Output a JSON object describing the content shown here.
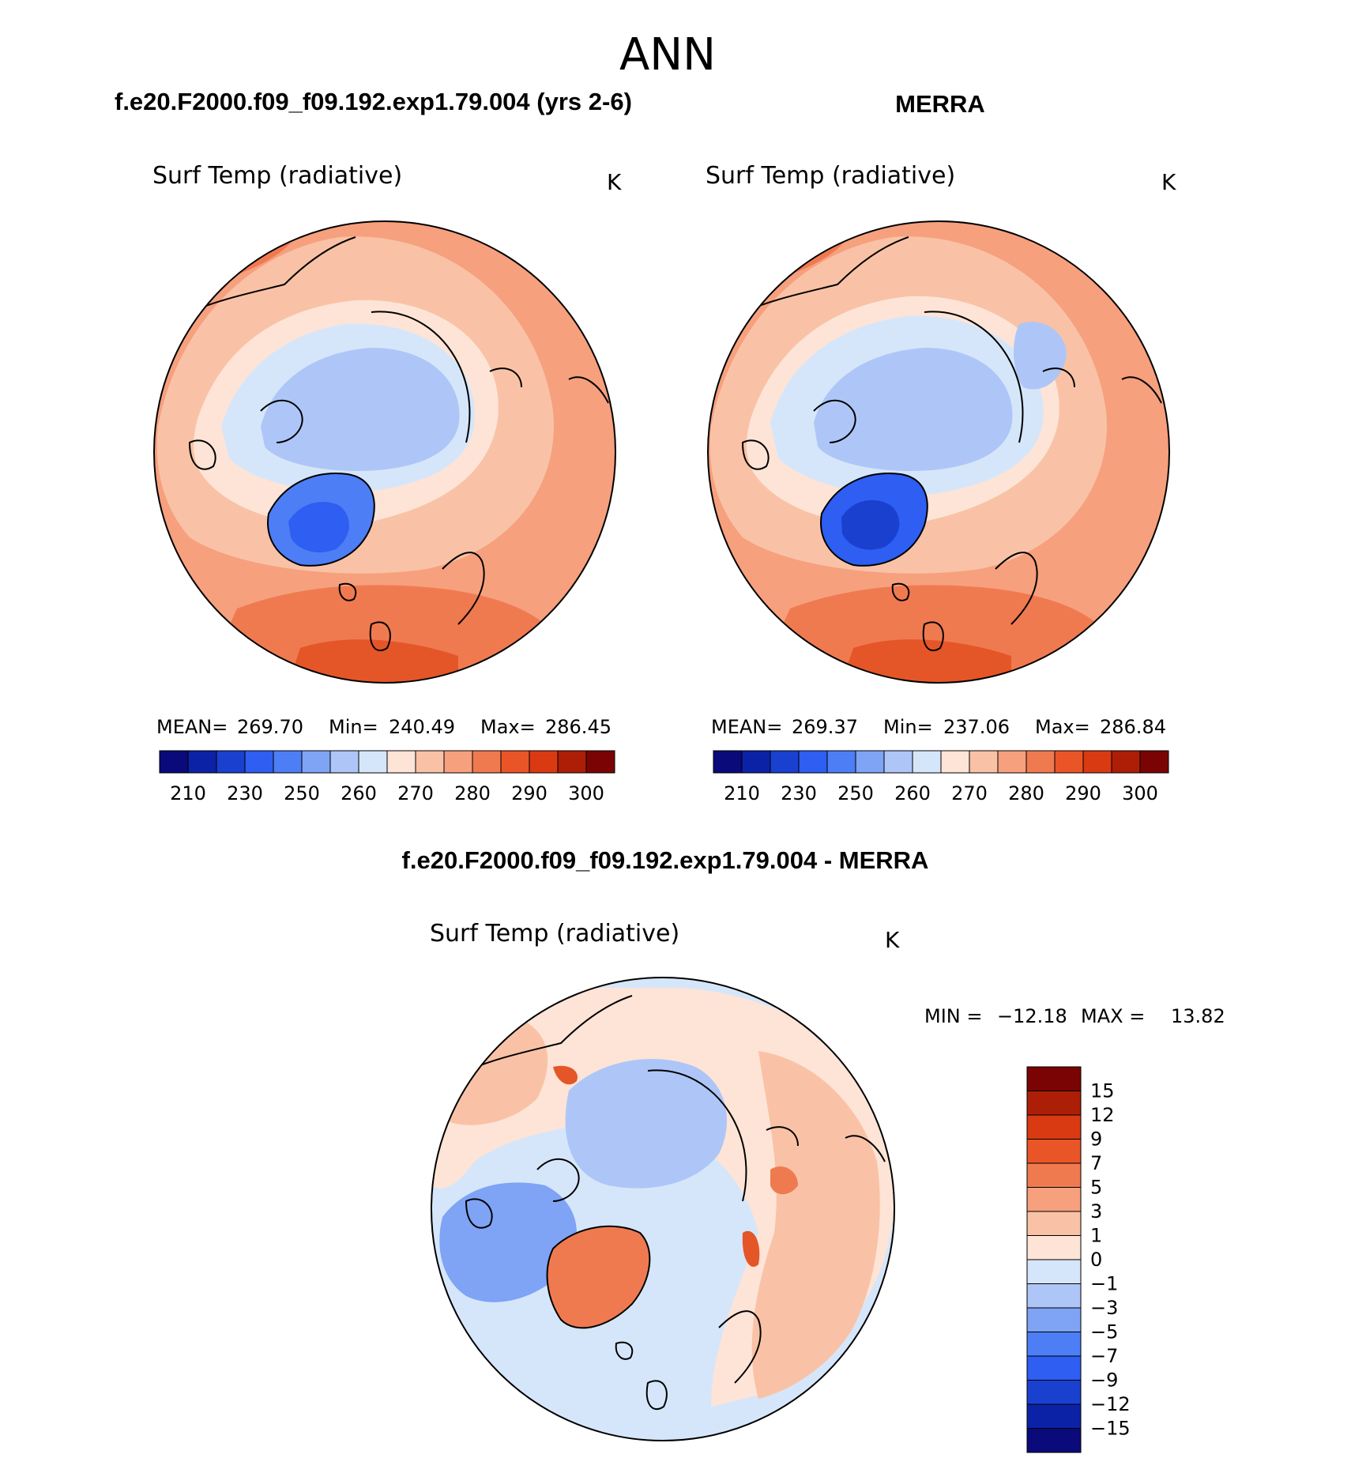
{
  "figure": {
    "season": "ANN",
    "left_panel_title": "f.e20.F2000.f09_f09.192.exp1.79.004 (yrs 2-6)",
    "right_panel_title": "MERRA",
    "diff_panel_title": "f.e20.F2000.f09_f09.192.exp1.79.004 - MERRA"
  },
  "panels": {
    "model": {
      "variable": "Surf Temp (radiative)",
      "units": "K",
      "stats": {
        "mean_label": "MEAN=",
        "mean": "269.70",
        "min_label": "Min=",
        "min": "240.49",
        "max_label": "Max=",
        "max": "286.45"
      }
    },
    "obs": {
      "variable": "Surf Temp (radiative)",
      "units": "K",
      "stats": {
        "mean_label": "MEAN=",
        "mean": "269.37",
        "min_label": "Min=",
        "min": "237.06",
        "max_label": "Max=",
        "max": "286.84"
      }
    },
    "diff": {
      "variable": "Surf Temp (radiative)",
      "units": "K",
      "stats": {
        "min_label": "MIN =",
        "min": "−12.18",
        "max_label": "MAX =",
        "max": "13.82"
      }
    }
  },
  "colorbars": {
    "absolute": {
      "tick_labels": [
        "210",
        "230",
        "250",
        "260",
        "270",
        "280",
        "290",
        "300"
      ],
      "colors": [
        "#0a0a7a",
        "#0c22a6",
        "#1a40d0",
        "#2e5ef2",
        "#4d7ef5",
        "#7fa3f5",
        "#aec6f7",
        "#d6e6fa",
        "#fde4d6",
        "#f9c2a6",
        "#f6a07e",
        "#f07a50",
        "#ea5528",
        "#d93a12",
        "#ad1e06",
        "#7a0404"
      ]
    },
    "difference": {
      "tick_labels": [
        "15",
        "12",
        "9",
        "7",
        "5",
        "3",
        "1",
        "0",
        "−1",
        "−3",
        "−5",
        "−7",
        "−9",
        "−12",
        "−15"
      ],
      "colors": [
        "#7a0404",
        "#ad1e06",
        "#d93a12",
        "#ea5528",
        "#f07a50",
        "#f6a07e",
        "#f9c2a6",
        "#fde4d6",
        "#d6e6fa",
        "#aec6f7",
        "#7fa3f5",
        "#4d7ef5",
        "#2e5ef2",
        "#1a40d0",
        "#0c22a6",
        "#0a0a7a"
      ]
    }
  },
  "map_colors": {
    "warm_dark": "#e45628",
    "warm": "#f07a50",
    "warm_mid": "#f6a07e",
    "warm_light": "#f9c2a6",
    "warm_pale": "#fde4d6",
    "cool_pale": "#d6e6fa",
    "cool_light": "#aec6f7",
    "cool_mid": "#7fa3f5",
    "cool": "#4d7ef5",
    "cool_dark": "#2e5ef2",
    "coast": "#000000"
  }
}
